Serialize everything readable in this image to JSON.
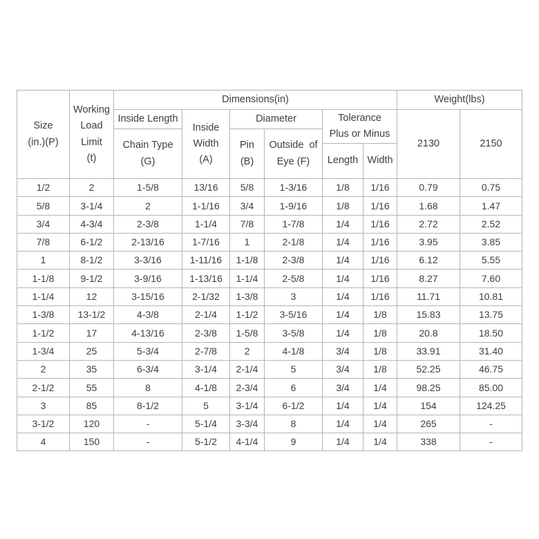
{
  "colors": {
    "background": "#ffffff",
    "border": "#b4b4b4",
    "text": "#3e3e3e"
  },
  "table": {
    "header": {
      "size": [
        "Size",
        "(in.)(P)"
      ],
      "working_load_limit": [
        "Working",
        "Load",
        "Limit",
        "(t)"
      ],
      "dimensions_group": "Dimensions(in)",
      "weight_group": "Weight(lbs)",
      "inside_length_group": "Inside Length",
      "chain_type": [
        "Chain Type",
        "(G)"
      ],
      "inside_width": [
        "Inside",
        "Width",
        "(A)"
      ],
      "diameter_group": "Diameter",
      "pin": [
        "Pin",
        "(B)"
      ],
      "outside_of_eye": [
        "Outside  of",
        "Eye (F)"
      ],
      "tolerance_group": [
        "Tolerance",
        "Plus or Minus"
      ],
      "tolerance_length": "Length",
      "tolerance_width": "Width",
      "weight_2130": "2130",
      "weight_2150": "2150"
    }
  },
  "chart_data": {
    "type": "table",
    "columns": [
      "Size (in.)(P)",
      "Working Load Limit (t)",
      "Dimensions(in) / Inside Length / Chain Type (G)",
      "Dimensions(in) / Inside Width (A)",
      "Dimensions(in) / Diameter / Pin (B)",
      "Dimensions(in) / Diameter / Outside of Eye (F)",
      "Dimensions(in) / Tolerance Plus or Minus / Length",
      "Dimensions(in) / Tolerance Plus or Minus / Width",
      "Weight(lbs) / 2130",
      "Weight(lbs) / 2150"
    ],
    "rows": [
      [
        "1/2",
        "2",
        "1-5/8",
        "13/16",
        "5/8",
        "1-3/16",
        "1/8",
        "1/16",
        "0.79",
        "0.75"
      ],
      [
        "5/8",
        "3-1/4",
        "2",
        "1-1/16",
        "3/4",
        "1-9/16",
        "1/8",
        "1/16",
        "1.68",
        "1.47"
      ],
      [
        "3/4",
        "4-3/4",
        "2-3/8",
        "1-1/4",
        "7/8",
        "1-7/8",
        "1/4",
        "1/16",
        "2.72",
        "2.52"
      ],
      [
        "7/8",
        "6-1/2",
        "2-13/16",
        "1-7/16",
        "1",
        "2-1/8",
        "1/4",
        "1/16",
        "3.95",
        "3.85"
      ],
      [
        "1",
        "8-1/2",
        "3-3/16",
        "1-11/16",
        "1-1/8",
        "2-3/8",
        "1/4",
        "1/16",
        "6.12",
        "5.55"
      ],
      [
        "1-1/8",
        "9-1/2",
        "3-9/16",
        "1-13/16",
        "1-1/4",
        "2-5/8",
        "1/4",
        "1/16",
        "8.27",
        "7.60"
      ],
      [
        "1-1/4",
        "12",
        "3-15/16",
        "2-1/32",
        "1-3/8",
        "3",
        "1/4",
        "1/16",
        "11.71",
        "10.81"
      ],
      [
        "1-3/8",
        "13-1/2",
        "4-3/8",
        "2-1/4",
        "1-1/2",
        "3-5/16",
        "1/4",
        "1/8",
        "15.83",
        "13.75"
      ],
      [
        "1-1/2",
        "17",
        "4-13/16",
        "2-3/8",
        "1-5/8",
        "3-5/8",
        "1/4",
        "1/8",
        "20.8",
        "18.50"
      ],
      [
        "1-3/4",
        "25",
        "5-3/4",
        "2-7/8",
        "2",
        "4-1/8",
        "3/4",
        "1/8",
        "33.91",
        "31.40"
      ],
      [
        "2",
        "35",
        "6-3/4",
        "3-1/4",
        "2-1/4",
        "5",
        "3/4",
        "1/8",
        "52.25",
        "46.75"
      ],
      [
        "2-1/2",
        "55",
        "8",
        "4-1/8",
        "2-3/4",
        "6",
        "3/4",
        "1/4",
        "98.25",
        "85.00"
      ],
      [
        "3",
        "85",
        "8-1/2",
        "5",
        "3-1/4",
        "6-1/2",
        "1/4",
        "1/4",
        "154",
        "124.25"
      ],
      [
        "3-1/2",
        "120",
        "-",
        "5-1/4",
        "3-3/4",
        "8",
        "1/4",
        "1/4",
        "265",
        "-"
      ],
      [
        "4",
        "150",
        "-",
        "5-1/2",
        "4-1/4",
        "9",
        "1/4",
        "1/4",
        "338",
        "-"
      ]
    ]
  }
}
